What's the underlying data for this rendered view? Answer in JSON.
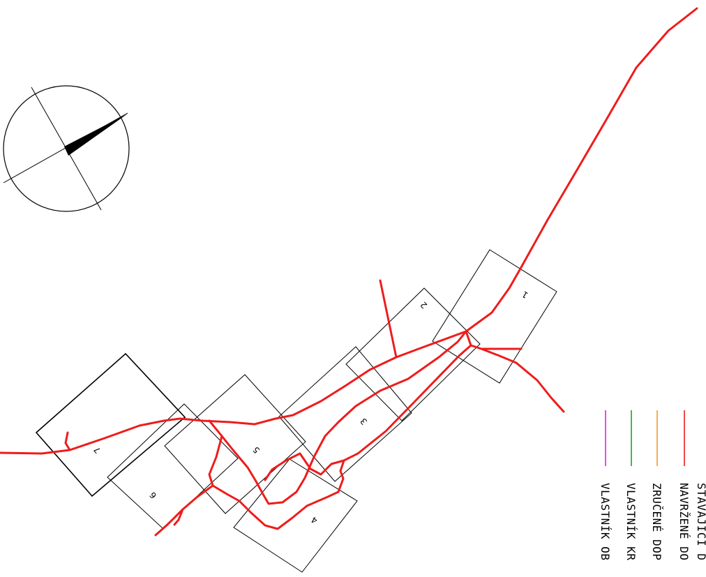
{
  "map": {
    "north_arrow": {
      "icon": "north-arrow-icon"
    },
    "sheets": [
      {
        "label": "1"
      },
      {
        "label": "2"
      },
      {
        "label": "3"
      },
      {
        "label": "4"
      },
      {
        "label": "5"
      },
      {
        "label": "6"
      },
      {
        "label": "7"
      }
    ]
  },
  "legend": {
    "items": [
      {
        "label": "STÁVAJÍCÍ D",
        "color": ""
      },
      {
        "label": "NAVRŽENÉ DO",
        "color": "#ee1c1c"
      },
      {
        "label": "ZRUČENÉ DOP",
        "color": "#f39a2b"
      },
      {
        "label": "VLASTNÍK KR",
        "color": "#1aa31a"
      },
      {
        "label": "VLASTNÍK OB",
        "color": "#e31ee3"
      }
    ]
  }
}
